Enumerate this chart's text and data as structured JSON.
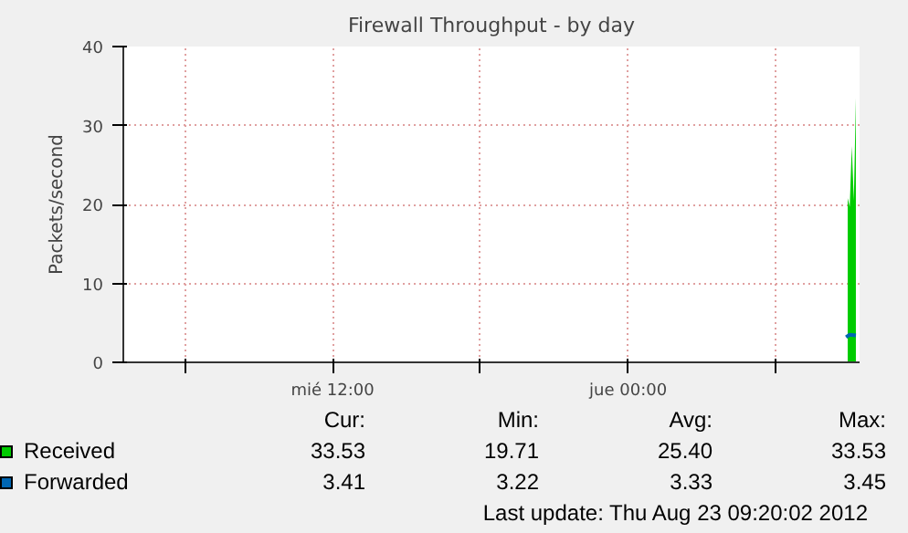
{
  "chart_data": {
    "type": "area",
    "title": "Firewall Throughput - by day",
    "ylabel": "Packets/second",
    "xlim": [
      "2012-08-22T03:30",
      "2012-08-23T09:24"
    ],
    "xticks": [
      {
        "value": "2012-08-22T06:00",
        "label": null
      },
      {
        "value": "2012-08-22T12:00",
        "label": "mié 12:00"
      },
      {
        "value": "2012-08-22T18:00",
        "label": null
      },
      {
        "value": "2012-08-23T00:00",
        "label": "jue 00:00"
      },
      {
        "value": "2012-08-23T06:00",
        "label": null
      }
    ],
    "ylim": [
      0,
      40
    ],
    "yticks": [
      0,
      10,
      20,
      30,
      40
    ],
    "grid": true,
    "legend": "bottom",
    "series": [
      {
        "name": "Received",
        "color": "#00cc00",
        "x": [
          "2012-08-23T08:55",
          "2012-08-23T09:00",
          "2012-08-23T09:05",
          "2012-08-23T09:10",
          "2012-08-23T09:15"
        ],
        "values": [
          20.8,
          19.7,
          27.4,
          20.5,
          33.5
        ]
      },
      {
        "name": "Forwarded",
        "color": "#0066b3",
        "type": "line",
        "x": [
          "2012-08-23T08:51",
          "2012-08-23T09:00",
          "2012-08-23T09:15"
        ],
        "values": [
          3.2,
          3.5,
          3.4
        ]
      }
    ],
    "annotations": [
      "Cur:",
      "Min:",
      "Avg:",
      "Max:",
      "33.53",
      "19.71",
      "25.40",
      "33.53",
      "3.41",
      "3.22",
      "3.33",
      "3.45",
      "Last update:  Thu Aug 23 09:20:02 2012"
    ]
  }
}
